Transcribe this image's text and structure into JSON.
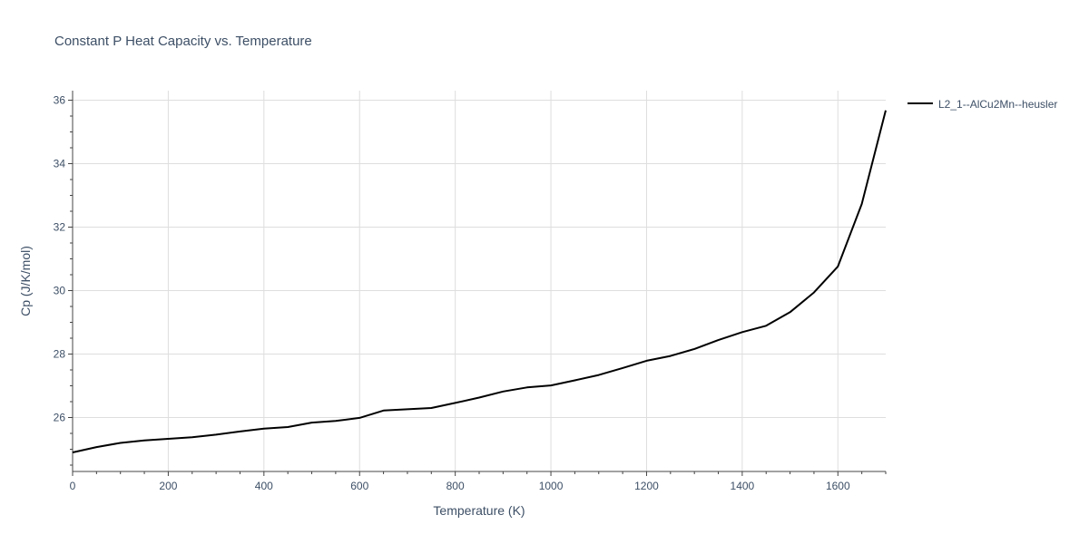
{
  "chart_data": {
    "type": "line",
    "title": "Constant P Heat Capacity vs. Temperature",
    "xlabel": "Temperature (K)",
    "ylabel": "Cp (J/K/mol)",
    "xlim": [
      0,
      1700
    ],
    "ylim": [
      24.3,
      36.3
    ],
    "xticks": [
      0,
      200,
      400,
      600,
      800,
      1000,
      1200,
      1400,
      1600
    ],
    "yticks": [
      26,
      28,
      30,
      32,
      34,
      36
    ],
    "grid": true,
    "legend_position": "top-right outside",
    "series": [
      {
        "name": "L2_1--AlCu2Mn--heusler",
        "color": "#000000",
        "x": [
          0,
          50,
          100,
          150,
          200,
          250,
          300,
          350,
          400,
          450,
          500,
          550,
          600,
          650,
          700,
          750,
          800,
          850,
          900,
          950,
          1000,
          1050,
          1100,
          1150,
          1200,
          1250,
          1300,
          1350,
          1400,
          1450,
          1500,
          1550,
          1600,
          1650,
          1700
        ],
        "y": [
          24.9,
          25.07,
          25.2,
          25.28,
          25.33,
          25.38,
          25.46,
          25.56,
          25.65,
          25.7,
          25.84,
          25.89,
          25.99,
          26.22,
          26.26,
          26.3,
          26.46,
          26.63,
          26.82,
          26.95,
          27.01,
          27.17,
          27.34,
          27.56,
          27.79,
          27.94,
          28.16,
          28.44,
          28.69,
          28.89,
          29.32,
          29.94,
          30.76,
          32.73,
          35.68
        ]
      }
    ]
  }
}
